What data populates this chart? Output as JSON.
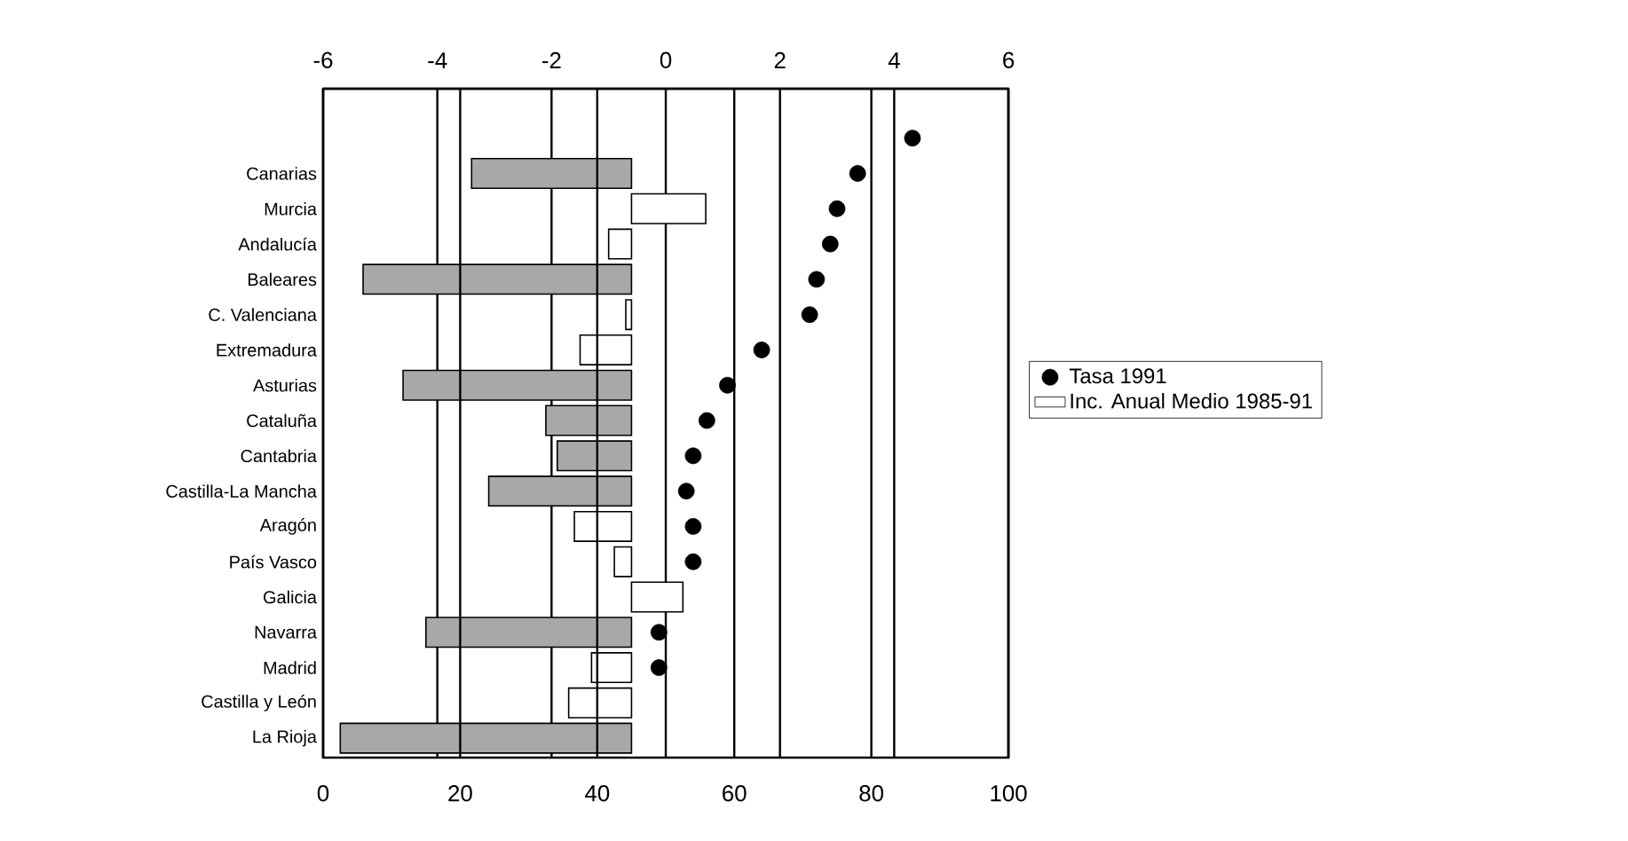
{
  "chart_data": {
    "type": "bar",
    "orientation": "horizontal",
    "categories": [
      null,
      "Canarias",
      "Murcia",
      "Andalucía",
      "Baleares",
      "C. Valenciana",
      "Extremadura",
      "Asturias",
      "Cataluña",
      "Cantabria",
      "Castilla-La Mancha",
      "Aragón",
      "País Vasco",
      "Galicia",
      "Navarra",
      "Madrid",
      "Castilla y León",
      "La Rioja"
    ],
    "series": [
      {
        "name": "Inc. Anual Medio 1985-91",
        "type": "bar",
        "axis": "x2",
        "color": "#ffffff",
        "colors": [
          null,
          "#a8a8a8",
          "#ffffff",
          "#ffffff",
          "#a8a8a8",
          "#ffffff",
          "#ffffff",
          "#a8a8a8",
          "#a8a8a8",
          "#a8a8a8",
          "#a8a8a8",
          "#ffffff",
          "#ffffff",
          "#ffffff",
          "#a8a8a8",
          "#ffffff",
          "#ffffff",
          "#a8a8a8"
        ],
        "base": [
          null,
          -0.6,
          -0.6,
          -0.6,
          -0.6,
          -0.6,
          -0.6,
          -0.6,
          -0.6,
          -0.6,
          -0.6,
          -0.6,
          -0.6,
          -0.6,
          -0.6,
          -0.6,
          -0.6,
          -0.6
        ],
        "values": [
          null,
          -2.8,
          1.3,
          -0.4,
          -4.7,
          -0.1,
          -0.9,
          -4.0,
          -1.5,
          -1.3,
          -2.5,
          -1.0,
          -0.3,
          0.9,
          -3.6,
          -0.7,
          -1.1,
          -5.1
        ]
      },
      {
        "name": "Tasa 1991",
        "type": "scatter",
        "color": "#000000",
        "values": [
          86,
          78,
          75,
          74,
          72,
          71,
          64,
          59,
          56,
          54,
          53,
          54,
          54,
          null,
          49,
          49,
          null,
          null
        ]
      }
    ],
    "xlim": [
      0,
      100
    ],
    "xticks": [
      0,
      20,
      40,
      60,
      80,
      100
    ],
    "x2lim": [
      -6,
      6
    ],
    "x2ticks": [
      -6,
      -4,
      -2,
      0,
      2,
      4,
      6
    ],
    "grid": "x",
    "legend": "right",
    "marker": "circle"
  }
}
